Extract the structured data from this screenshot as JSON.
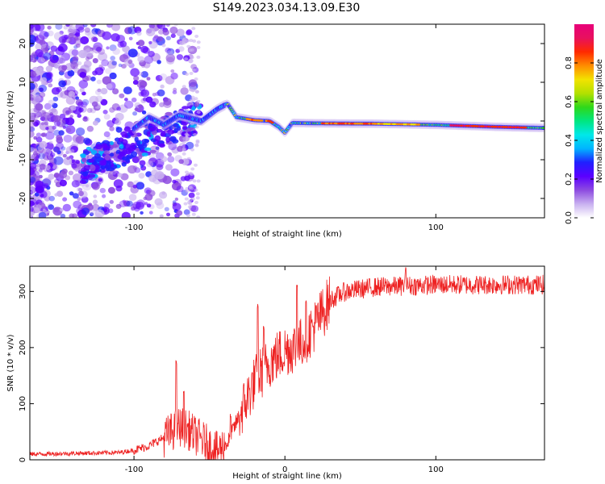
{
  "title": "S149.2023.034.13.09.E30",
  "chart_data": [
    {
      "type": "heatmap",
      "xlabel": "Height of straight line (km)",
      "ylabel": "Frequency (Hz)",
      "xlim": [
        -169,
        172
      ],
      "ylim": [
        -25,
        25
      ],
      "x_ticks": [
        -100,
        100
      ],
      "y_ticks": [
        -20,
        -10,
        0,
        10,
        20
      ],
      "colorbar": {
        "label": "Normalized spectral amplitude",
        "range": [
          0,
          1
        ],
        "ticks": [
          0.0,
          0.2,
          0.4,
          0.6,
          0.8
        ],
        "colors": [
          "#ffffff",
          "#c9b1f0",
          "#8d4be0",
          "#5b00ff",
          "#2020ff",
          "#00b4ff",
          "#00e8e8",
          "#00e680",
          "#2ed81a",
          "#b4e000",
          "#f2e300",
          "#ff8c00",
          "#ff2a00",
          "#e8105e",
          "#e8007a"
        ]
      },
      "ridge": [
        {
          "x": -100,
          "y": -2.0
        },
        {
          "x": -90,
          "y": 1.0
        },
        {
          "x": -80,
          "y": -1.0
        },
        {
          "x": -70,
          "y": 1.5
        },
        {
          "x": -55,
          "y": 0.0
        },
        {
          "x": -45,
          "y": 3.0
        },
        {
          "x": -38,
          "y": 4.5
        },
        {
          "x": -32,
          "y": 1.0
        },
        {
          "x": -20,
          "y": 0.2
        },
        {
          "x": -10,
          "y": 0.0
        },
        {
          "x": -4,
          "y": -1.5
        },
        {
          "x": 0,
          "y": -3.0
        },
        {
          "x": 5,
          "y": -0.5
        },
        {
          "x": 20,
          "y": -0.6
        },
        {
          "x": 60,
          "y": -0.7
        },
        {
          "x": 100,
          "y": -1.0
        },
        {
          "x": 140,
          "y": -1.5
        },
        {
          "x": 172,
          "y": -1.8
        }
      ]
    },
    {
      "type": "line",
      "xlabel": "Height of straight line (km)",
      "ylabel": "SNR (10 * v/v)",
      "xlim": [
        -169,
        172
      ],
      "ylim": [
        0,
        345
      ],
      "x_ticks": [
        -100,
        0,
        100
      ],
      "y_ticks": [
        0,
        100,
        200,
        300
      ],
      "line_color": "#ee2222",
      "trend": [
        {
          "x": -169,
          "y": 10
        },
        {
          "x": -110,
          "y": 13
        },
        {
          "x": -100,
          "y": 17
        },
        {
          "x": -90,
          "y": 25
        },
        {
          "x": -80,
          "y": 40
        },
        {
          "x": -70,
          "y": 60
        },
        {
          "x": -65,
          "y": 55
        },
        {
          "x": -55,
          "y": 35
        },
        {
          "x": -45,
          "y": 15
        },
        {
          "x": -38,
          "y": 30
        },
        {
          "x": -30,
          "y": 80
        },
        {
          "x": -20,
          "y": 140
        },
        {
          "x": -10,
          "y": 175
        },
        {
          "x": 0,
          "y": 195
        },
        {
          "x": 10,
          "y": 205
        },
        {
          "x": 20,
          "y": 240
        },
        {
          "x": 30,
          "y": 285
        },
        {
          "x": 40,
          "y": 300
        },
        {
          "x": 60,
          "y": 308
        },
        {
          "x": 100,
          "y": 312
        },
        {
          "x": 140,
          "y": 312
        },
        {
          "x": 172,
          "y": 312
        }
      ],
      "spikes": [
        {
          "x": -72,
          "y": 180
        },
        {
          "x": -67,
          "y": 130
        },
        {
          "x": -36,
          "y": 85
        },
        {
          "x": -18,
          "y": 280
        },
        {
          "x": -14,
          "y": 240
        },
        {
          "x": 8,
          "y": 315
        },
        {
          "x": 14,
          "y": 290
        },
        {
          "x": 80,
          "y": 345
        }
      ]
    }
  ]
}
